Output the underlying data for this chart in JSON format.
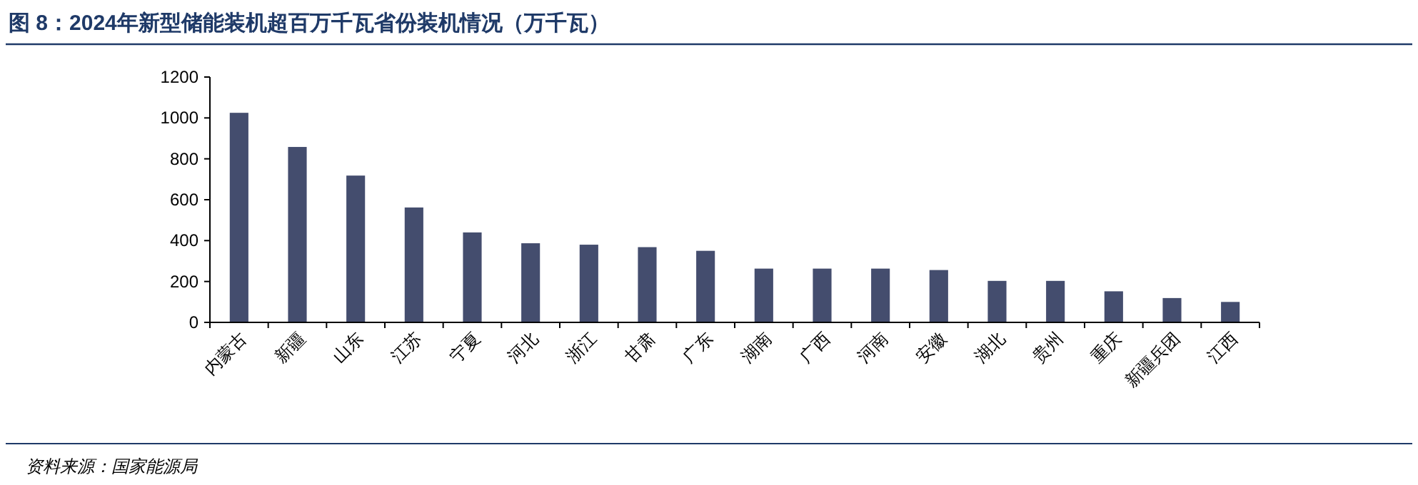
{
  "chart_data": {
    "type": "bar",
    "title": "图 8：2024年新型储能装机超百万千瓦省份装机情况（万千瓦）",
    "categories": [
      "内蒙古",
      "新疆",
      "山东",
      "江苏",
      "宁夏",
      "河北",
      "浙江",
      "甘肃",
      "广东",
      "湖南",
      "广西",
      "河南",
      "安徽",
      "湖北",
      "贵州",
      "重庆",
      "新疆兵团",
      "江西"
    ],
    "values": [
      1025,
      858,
      718,
      562,
      440,
      387,
      380,
      368,
      350,
      263,
      263,
      263,
      256,
      203,
      203,
      152,
      119,
      100
    ],
    "color": "#444d6e",
    "ylim": [
      0,
      1200
    ],
    "yticks": [
      0,
      200,
      400,
      600,
      800,
      1000,
      1200
    ],
    "grid": false,
    "annotations": [
      "资料来源：国家能源局"
    ]
  }
}
